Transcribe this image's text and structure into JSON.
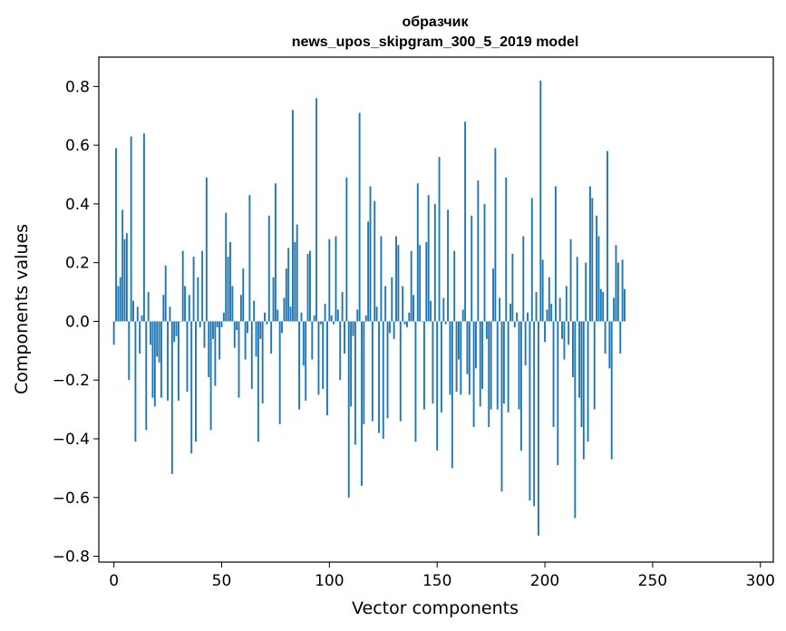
{
  "chart_data": {
    "type": "bar",
    "title_line1": "образчик",
    "title_line2": "news_upos_skipgram_300_5_2019 model",
    "xlabel": "Vector components",
    "ylabel": "Components values",
    "xlim": [
      -7,
      306
    ],
    "ylim": [
      -0.82,
      0.9
    ],
    "xticks": [
      0,
      50,
      100,
      150,
      200,
      250,
      300
    ],
    "yticks": [
      -0.8,
      -0.6,
      -0.4,
      -0.2,
      0.0,
      0.2,
      0.4,
      0.6,
      0.8
    ],
    "ytick_labels": [
      "−0.8",
      "−0.6",
      "−0.4",
      "−0.2",
      "0.0",
      "0.2",
      "0.4",
      "0.6",
      "0.8"
    ],
    "xtick_labels": [
      "0",
      "50",
      "100",
      "150",
      "200",
      "250",
      "300"
    ],
    "bar_color": "#1f77b4",
    "grid": false,
    "values": [
      -0.08,
      0.59,
      0.12,
      0.15,
      0.38,
      0.28,
      0.3,
      -0.2,
      0.63,
      0.07,
      -0.41,
      0.05,
      -0.11,
      0.02,
      0.64,
      -0.37,
      0.1,
      -0.08,
      -0.26,
      -0.29,
      -0.12,
      -0.14,
      -0.26,
      0.09,
      0.19,
      -0.27,
      0.05,
      -0.52,
      -0.07,
      -0.05,
      -0.27,
      0.0,
      0.24,
      0.12,
      -0.24,
      0.09,
      -0.45,
      0.22,
      -0.41,
      0.15,
      -0.02,
      0.24,
      -0.09,
      0.49,
      -0.19,
      -0.37,
      -0.06,
      -0.22,
      -0.02,
      -0.13,
      -0.02,
      0.03,
      0.37,
      0.22,
      0.27,
      0.12,
      -0.09,
      -0.03,
      -0.26,
      0.09,
      0.18,
      -0.13,
      -0.04,
      0.43,
      -0.23,
      0.07,
      -0.12,
      -0.41,
      -0.06,
      -0.28,
      0.03,
      -0.01,
      0.36,
      -0.11,
      0.15,
      0.47,
      0.04,
      -0.35,
      -0.04,
      0.08,
      0.18,
      0.25,
      0.05,
      0.72,
      0.27,
      0.33,
      -0.3,
      0.03,
      -0.15,
      -0.27,
      0.23,
      0.24,
      -0.13,
      0.02,
      0.76,
      -0.25,
      -0.01,
      -0.23,
      0.06,
      -0.32,
      0.28,
      0.02,
      -0.01,
      0.29,
      0.04,
      -0.2,
      0.1,
      -0.11,
      0.49,
      -0.6,
      -0.29,
      -0.05,
      -0.42,
      0.04,
      0.71,
      -0.56,
      -0.35,
      0.02,
      0.34,
      0.46,
      -0.34,
      0.41,
      0.05,
      -0.38,
      0.29,
      -0.4,
      0.12,
      -0.33,
      -0.04,
      0.15,
      -0.06,
      0.29,
      0.26,
      -0.34,
      0.12,
      -0.01,
      -0.02,
      0.03,
      0.24,
      0.09,
      -0.41,
      0.47,
      0.26,
      0.0,
      -0.3,
      0.27,
      0.43,
      0.07,
      -0.28,
      0.4,
      -0.44,
      0.56,
      -0.31,
      0.08,
      -0.01,
      0.38,
      -0.25,
      -0.5,
      0.24,
      -0.24,
      -0.13,
      -0.25,
      0.04,
      0.68,
      -0.18,
      -0.25,
      0.36,
      -0.36,
      -0.16,
      0.48,
      -0.29,
      -0.23,
      0.4,
      -0.06,
      -0.36,
      -0.3,
      0.18,
      0.59,
      -0.3,
      0.08,
      -0.58,
      -0.28,
      0.49,
      -0.31,
      0.06,
      0.23,
      -0.02,
      0.03,
      -0.3,
      -0.44,
      0.29,
      -0.15,
      0.03,
      -0.61,
      0.42,
      -0.63,
      0.1,
      -0.73,
      0.82,
      0.21,
      -0.07,
      0.04,
      0.15,
      0.06,
      -0.36,
      0.46,
      -0.49,
      0.08,
      -0.06,
      -0.13,
      0.12,
      -0.08,
      0.28,
      -0.19,
      -0.67,
      0.22,
      -0.26,
      -0.36,
      -0.47,
      0.2,
      -0.41,
      0.46,
      0.42,
      -0.3,
      0.36,
      0.29,
      0.11,
      0.1,
      -0.11,
      0.58,
      -0.16,
      -0.47,
      0.08,
      0.26,
      0.2,
      -0.11,
      0.21,
      0.11
    ]
  }
}
